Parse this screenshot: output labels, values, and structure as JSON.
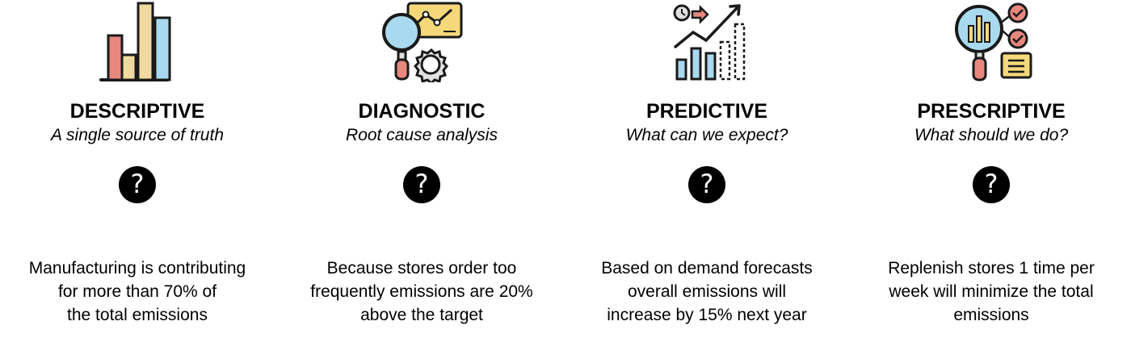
{
  "columns": [
    {
      "title": "DESCRIPTIVE",
      "subtitle": "A single source of truth",
      "question_glyph": "?",
      "description": [
        "Manufacturing is contributing",
        "for more than 70% of",
        "the total emissions"
      ],
      "icon": "bar-chart-icon"
    },
    {
      "title": "DIAGNOSTIC",
      "subtitle": "Root cause analysis",
      "question_glyph": "?",
      "description": [
        "Because stores order too",
        "frequently emissions are 20%",
        "above the target"
      ],
      "icon": "magnifier-gear-icon"
    },
    {
      "title": "PREDICTIVE",
      "subtitle": "What can we expect?",
      "question_glyph": "?",
      "description": [
        "Based on demand forecasts",
        "overall emissions will",
        "increase by 15% next year"
      ],
      "icon": "trend-forecast-icon"
    },
    {
      "title": "PRESCRIPTIVE",
      "subtitle": "What should we do?",
      "question_glyph": "?",
      "description": [
        "Replenish stores 1 time per",
        "week will minimize the total",
        "emissions"
      ],
      "icon": "checklist-magnifier-icon"
    }
  ],
  "colors": {
    "red": "#e8877e",
    "beige": "#f0d9a1",
    "blue": "#a9d9ee",
    "yellow": "#f5d87a",
    "gray": "#e0e0e0",
    "outline": "#1a1a1a"
  }
}
